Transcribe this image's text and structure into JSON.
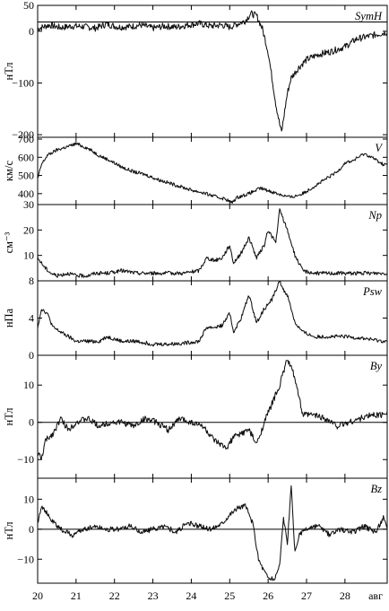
{
  "chart_data": [
    {
      "type": "line",
      "name_label": "SymH",
      "ylabel": "нТл",
      "ylim": [
        -205,
        50
      ],
      "yticks": [
        50,
        0,
        -100,
        -200
      ],
      "hline": 18,
      "x": [
        20.0,
        20.3,
        20.6,
        20.9,
        21.2,
        21.5,
        21.8,
        22.1,
        22.4,
        22.7,
        23.0,
        23.3,
        23.6,
        23.9,
        24.2,
        24.5,
        24.8,
        25.0,
        25.2,
        25.4,
        25.55,
        25.7,
        25.85,
        26.0,
        26.1,
        26.2,
        26.3,
        26.35,
        26.4,
        26.5,
        26.6,
        26.8,
        27.0,
        27.3,
        27.6,
        28.0,
        28.3,
        28.6,
        28.9,
        29.1
      ],
      "y": [
        5,
        12,
        7,
        10,
        9,
        6,
        14,
        8,
        9,
        12,
        6,
        10,
        8,
        12,
        15,
        10,
        12,
        8,
        14,
        20,
        34,
        30,
        5,
        -40,
        -90,
        -140,
        -180,
        -195,
        -170,
        -120,
        -90,
        -70,
        -55,
        -45,
        -40,
        -30,
        -15,
        -10,
        -5,
        -2
      ]
    },
    {
      "type": "line",
      "name_label": "V",
      "ylabel": "км/с",
      "ylim": [
        340,
        710
      ],
      "yticks": [
        700,
        600,
        500,
        400
      ],
      "x": [
        20.0,
        20.1,
        20.25,
        20.5,
        20.8,
        21.0,
        21.3,
        21.6,
        21.9,
        22.2,
        22.5,
        22.8,
        23.1,
        23.4,
        23.7,
        24.0,
        24.3,
        24.6,
        24.9,
        25.05,
        25.2,
        25.5,
        25.8,
        26.1,
        26.4,
        26.6,
        26.9,
        27.2,
        27.5,
        27.8,
        28.0,
        28.2,
        28.5,
        28.7,
        29.0,
        29.1
      ],
      "y": [
        480,
        560,
        610,
        640,
        660,
        675,
        650,
        610,
        580,
        545,
        520,
        505,
        480,
        460,
        440,
        420,
        405,
        385,
        370,
        350,
        380,
        400,
        430,
        410,
        390,
        380,
        400,
        440,
        480,
        520,
        570,
        580,
        620,
        600,
        560,
        560
      ]
    },
    {
      "type": "line",
      "name_label": "Np",
      "ylabel": "см⁻³",
      "ylim": [
        0,
        30
      ],
      "yticks": [
        30,
        20,
        10
      ],
      "x": [
        20.0,
        20.1,
        20.2,
        20.35,
        20.5,
        20.8,
        21.0,
        21.3,
        21.5,
        21.8,
        22.2,
        22.6,
        23.0,
        23.4,
        23.8,
        24.2,
        24.4,
        24.6,
        24.8,
        25.0,
        25.1,
        25.3,
        25.5,
        25.7,
        25.9,
        26.0,
        26.2,
        26.3,
        26.4,
        26.5,
        26.6,
        26.7,
        26.9,
        27.2,
        27.6,
        28.0,
        28.5,
        29.0,
        29.1
      ],
      "y": [
        9,
        7,
        5,
        3,
        2,
        3,
        2,
        2,
        3,
        3,
        4,
        3,
        3,
        3,
        3,
        4,
        9,
        8,
        9,
        14,
        7,
        11,
        17,
        9,
        14,
        20,
        15,
        28,
        24,
        20,
        15,
        10,
        4,
        3,
        3,
        3,
        3,
        3,
        3
      ]
    },
    {
      "type": "line",
      "name_label": "Psw",
      "ylabel": "нПа",
      "ylim": [
        0,
        8
      ],
      "yticks": [
        8,
        4,
        0
      ],
      "x": [
        20.0,
        20.1,
        20.25,
        20.4,
        20.6,
        20.8,
        21.0,
        21.3,
        21.6,
        21.8,
        22.2,
        22.6,
        23.0,
        23.4,
        23.8,
        24.2,
        24.4,
        24.6,
        24.8,
        25.0,
        25.1,
        25.3,
        25.5,
        25.7,
        25.9,
        26.1,
        26.3,
        26.4,
        26.5,
        26.6,
        26.7,
        26.9,
        27.2,
        27.6,
        28.0,
        28.5,
        29.0,
        29.1
      ],
      "y": [
        3,
        5,
        4.5,
        3,
        2.5,
        2,
        1.5,
        1.5,
        1.5,
        2,
        1.5,
        1.5,
        1.2,
        1.2,
        1.3,
        1.5,
        3,
        3,
        3.2,
        4.5,
        2.5,
        4,
        6.5,
        3.5,
        5,
        6,
        8,
        7,
        6.5,
        5,
        3.5,
        2.5,
        2,
        2,
        2,
        1.8,
        1.5,
        1.5
      ]
    },
    {
      "type": "line",
      "name_label": "By",
      "ylabel": "нТл",
      "ylim": [
        -15,
        18
      ],
      "yticks": [
        10,
        0,
        -10
      ],
      "hline": 0,
      "x": [
        20.0,
        20.1,
        20.2,
        20.4,
        20.6,
        20.8,
        21.0,
        21.3,
        21.6,
        21.9,
        22.2,
        22.5,
        22.8,
        23.1,
        23.4,
        23.7,
        24.0,
        24.3,
        24.6,
        24.9,
        25.1,
        25.3,
        25.5,
        25.7,
        25.9,
        26.1,
        26.3,
        26.5,
        26.7,
        26.9,
        27.2,
        27.5,
        27.8,
        28.1,
        28.4,
        28.7,
        29.0,
        29.1
      ],
      "y": [
        -8,
        -10,
        -5,
        -3,
        1,
        -2,
        0,
        1,
        -1,
        0,
        0,
        -1,
        1,
        0,
        -2,
        1,
        0,
        -1,
        -5,
        -7,
        -4,
        -3,
        -2,
        -6,
        0,
        5,
        10,
        17,
        12,
        2,
        2,
        1,
        -1,
        0,
        1,
        2,
        2,
        3
      ]
    },
    {
      "type": "line",
      "name_label": "Bz",
      "ylabel": "нТл",
      "ylim": [
        -18,
        17
      ],
      "yticks": [
        10,
        0,
        -10
      ],
      "hline": 0,
      "x": [
        20.0,
        20.1,
        20.2,
        20.35,
        20.6,
        20.9,
        21.2,
        21.5,
        21.8,
        22.1,
        22.4,
        22.7,
        23.0,
        23.3,
        23.6,
        23.9,
        24.2,
        24.5,
        24.8,
        25.0,
        25.2,
        25.4,
        25.6,
        25.75,
        25.9,
        26.0,
        26.15,
        26.3,
        26.4,
        26.5,
        26.6,
        26.7,
        26.8,
        27.0,
        27.3,
        27.6,
        27.9,
        28.2,
        28.5,
        28.8,
        29.0,
        29.1
      ],
      "y": [
        2,
        8,
        6,
        3,
        0,
        -2,
        0,
        1,
        0,
        0,
        1,
        -1,
        0,
        1,
        -1,
        2,
        1,
        0,
        2,
        5,
        7,
        8,
        2,
        -10,
        -14,
        -16,
        -17,
        -12,
        4,
        -5,
        14,
        -8,
        -2,
        0,
        1,
        -2,
        0,
        -1,
        1,
        -1,
        4,
        0
      ]
    }
  ],
  "x_axis": {
    "xlim": [
      20,
      29.1
    ],
    "ticks": [
      "20",
      "21",
      "22",
      "23",
      "24",
      "25",
      "26",
      "27",
      "28"
    ],
    "tick_values": [
      20,
      21,
      22,
      23,
      24,
      25,
      26,
      27,
      28
    ],
    "unit_label": "авг"
  }
}
